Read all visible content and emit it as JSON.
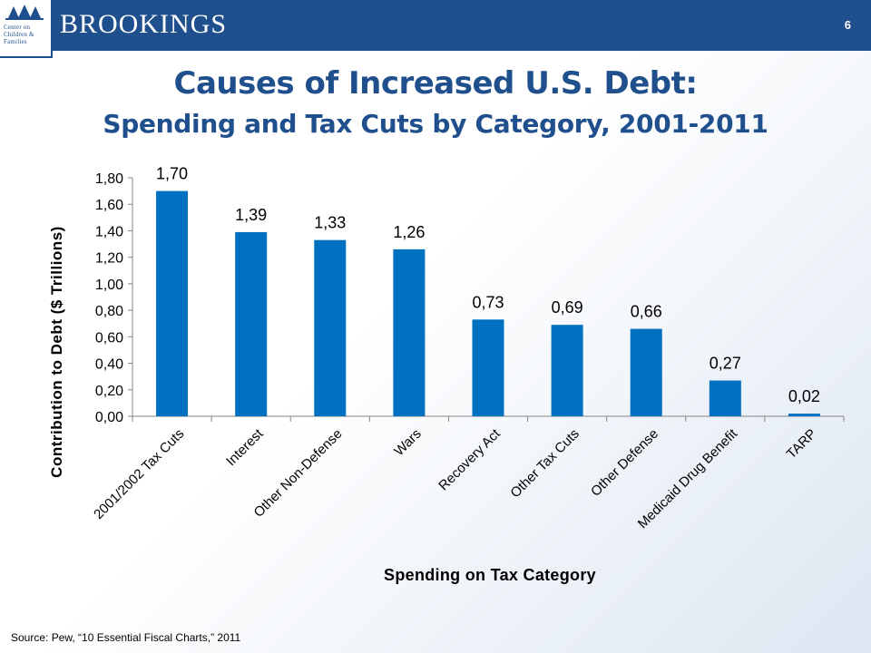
{
  "header": {
    "brand": "BROOKINGS",
    "logo_text": "Center on Children & Families",
    "slide_number": "6"
  },
  "title": "Causes of Increased U.S. Debt:",
  "subtitle": "Spending and Tax Cuts by Category, 2001-2011",
  "source": "Source: Pew, “10 Essential Fiscal Charts,” 2011",
  "colors": {
    "bar": "#0070c0",
    "header": "#1f4f8c",
    "title": "#1f4f8c"
  },
  "chart_data": {
    "type": "bar",
    "xlabel": "Spending on Tax Category",
    "ylabel": "Contribution to Debt ($ Trillions)",
    "ylim": [
      0,
      1.8
    ],
    "yticks": [
      "0,00",
      "0,20",
      "0,40",
      "0,60",
      "0,80",
      "1,00",
      "1,20",
      "1,40",
      "1,60",
      "1,80"
    ],
    "categories": [
      "2001/2002 Tax Cuts",
      "Interest",
      "Other Non-Defense",
      "Wars",
      "Recovery Act",
      "Other Tax Cuts",
      "Other Defense",
      "Medicaid Drug Benefit",
      "TARP"
    ],
    "values": [
      1.7,
      1.39,
      1.33,
      1.26,
      0.73,
      0.69,
      0.66,
      0.27,
      0.02
    ],
    "data_labels": [
      "1,70",
      "1,39",
      "1,33",
      "1,26",
      "0,73",
      "0,69",
      "0,66",
      "0,27",
      "0,02"
    ],
    "grid": false,
    "legend": "none"
  }
}
